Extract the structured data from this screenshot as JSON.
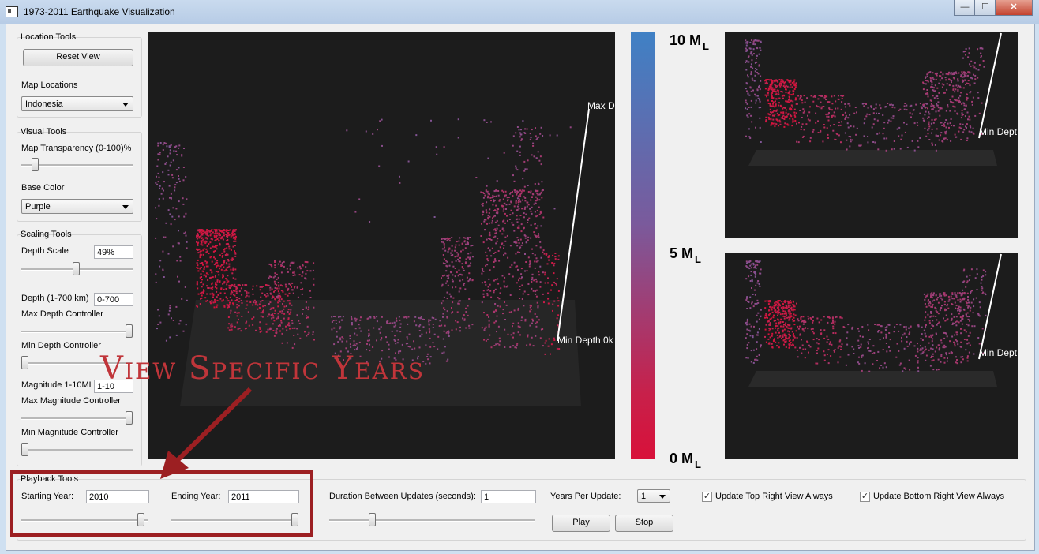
{
  "window": {
    "title": "1973-2011 Earthquake Visualization",
    "minimize": "—",
    "maximize": "☐",
    "close": "✕"
  },
  "location_tools": {
    "title": "Location Tools",
    "reset_label": "Reset View",
    "map_locations_label": "Map Locations",
    "map_location_value": "Indonesia"
  },
  "visual_tools": {
    "title": "Visual Tools",
    "transparency_label": "Map Transparency (0-100)%",
    "transparency_level": 0.1,
    "base_color_label": "Base Color",
    "base_color_value": "Purple"
  },
  "scaling_tools": {
    "title": "Scaling Tools",
    "depth_scale_label": "Depth Scale",
    "depth_scale_value": "49%",
    "depth_scale_level": 0.49,
    "depth_label": "Depth (1-700 km)",
    "depth_value": "0-700",
    "max_depth_label": "Max Depth Controller",
    "max_depth_level": 1.0,
    "min_depth_label": "Min Depth Controller",
    "min_depth_level": 0.0,
    "magnitude_label": "Magnitude 1-10ML",
    "magnitude_value": "1-10",
    "max_mag_label": "Max Magnitude Controller",
    "max_mag_level": 1.0,
    "min_mag_label": "Min Magnitude Controller",
    "min_mag_level": 0.0
  },
  "playback_tools": {
    "title": "Playback Tools",
    "starting_year_label": "Starting Year:",
    "starting_year_value": "2010",
    "starting_year_level": 0.97,
    "ending_year_label": "Ending Year:",
    "ending_year_value": "2011",
    "ending_year_level": 1.0,
    "duration_label": "Duration Between Updates (seconds):",
    "duration_value": "1",
    "duration_level": 0.2,
    "years_per_update_label": "Years Per Update:",
    "years_per_update_value": "1",
    "play_label": "Play",
    "stop_label": "Stop",
    "update_top_label": "Update Top Right View Always",
    "update_top_checked": true,
    "update_bottom_label": "Update Bottom Right View Always",
    "update_bottom_checked": true
  },
  "main_view": {
    "max_depth_label": "Max D",
    "min_depth_label": "Min Depth 0k"
  },
  "top_right_view": {
    "min_depth_label": "Min Dept"
  },
  "bottom_right_view": {
    "min_depth_label": "Min Dept"
  },
  "colorbar": {
    "top_label": "10 M",
    "mid_label": "5 M",
    "bottom_label": "0 M",
    "unit": "L",
    "top_color": "#3f81c5",
    "mid_color": "#7a5a9c",
    "bottom_color": "#d8113a"
  },
  "annotation": {
    "text": "View Specific Years",
    "color": "#c0353a",
    "box_color": "#9c1f22"
  }
}
